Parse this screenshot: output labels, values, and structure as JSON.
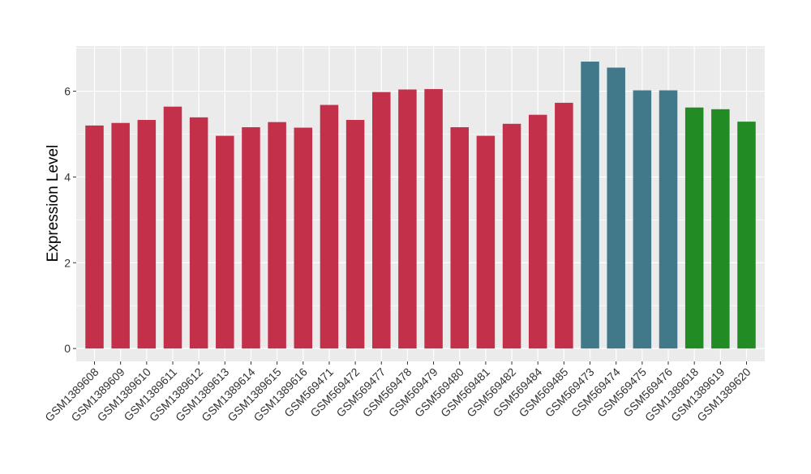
{
  "chart_data": {
    "type": "bar",
    "title": "",
    "xlabel": "",
    "ylabel": "Expression Level",
    "ylim": [
      -0.3,
      7.05
    ],
    "yticks": [
      0,
      2,
      4,
      6
    ],
    "grid": true,
    "legend": "none",
    "categories": [
      "GSM1389608",
      "GSM1389609",
      "GSM1389610",
      "GSM1389611",
      "GSM1389612",
      "GSM1389613",
      "GSM1389614",
      "GSM1389615",
      "GSM1389616",
      "GSM569471",
      "GSM569472",
      "GSM569477",
      "GSM569478",
      "GSM569479",
      "GSM569480",
      "GSM569481",
      "GSM569482",
      "GSM569484",
      "GSM569485",
      "GSM569473",
      "GSM569474",
      "GSM569475",
      "GSM569476",
      "GSM1389618",
      "GSM1389619",
      "GSM1389620"
    ],
    "values": [
      5.2,
      5.26,
      5.33,
      5.64,
      5.39,
      4.96,
      5.16,
      5.28,
      5.15,
      5.68,
      5.33,
      5.98,
      6.04,
      6.05,
      5.16,
      4.96,
      5.24,
      5.45,
      5.73,
      6.69,
      6.55,
      6.02,
      6.02,
      5.62,
      5.58,
      5.29
    ],
    "colors": [
      "#c3304a",
      "#c3304a",
      "#c3304a",
      "#c3304a",
      "#c3304a",
      "#c3304a",
      "#c3304a",
      "#c3304a",
      "#c3304a",
      "#c3304a",
      "#c3304a",
      "#c3304a",
      "#c3304a",
      "#c3304a",
      "#c3304a",
      "#c3304a",
      "#c3304a",
      "#c3304a",
      "#c3304a",
      "#41788a",
      "#41788a",
      "#41788a",
      "#41788a",
      "#238b23",
      "#238b23",
      "#238b23"
    ],
    "panel_background": "#ebebeb",
    "grid_color": "#ffffff"
  }
}
